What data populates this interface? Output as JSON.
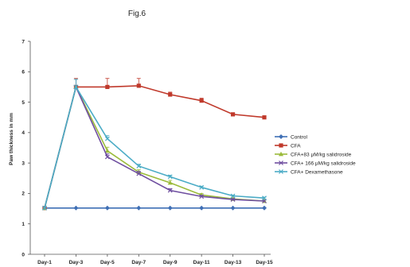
{
  "chart_data": {
    "type": "line",
    "title": "Fig.6",
    "ylabel": "Paw thickness in mm",
    "xlabel": "",
    "categories": [
      "Day-1",
      "Day-3",
      "Day-5",
      "Day-7",
      "Day-9",
      "Day-11",
      "Day-13",
      "Day-15"
    ],
    "ylim": [
      0,
      7
    ],
    "yticks": [
      0,
      1,
      2,
      3,
      4,
      5,
      6,
      7
    ],
    "grid": false,
    "legend_position": "right",
    "series": [
      {
        "name": "Control",
        "color": "#3f6fb5",
        "marker": "diamond",
        "values": [
          1.52,
          1.52,
          1.52,
          1.52,
          1.52,
          1.52,
          1.52,
          1.52
        ],
        "errors": [
          0,
          0,
          0,
          0,
          0,
          0,
          0,
          0
        ]
      },
      {
        "name": "CFA",
        "color": "#c0392b",
        "marker": "square",
        "values": [
          1.52,
          5.5,
          5.5,
          5.54,
          5.25,
          5.05,
          4.6,
          4.5
        ],
        "errors": [
          0,
          0.28,
          0.28,
          0.24,
          0.08,
          0.08,
          0,
          0
        ]
      },
      {
        "name": "CFA+83 μM/kg salidroside",
        "color": "#9bbb3b",
        "marker": "triangle",
        "values": [
          1.52,
          5.5,
          3.4,
          2.7,
          2.35,
          1.95,
          1.82,
          1.75
        ],
        "errors": [
          0,
          0.25,
          0.12,
          0.08,
          0.08,
          0.05,
          0.03,
          0.03
        ]
      },
      {
        "name": "CFA+  166 μM/kg salidroside",
        "color": "#6f4fa0",
        "marker": "x",
        "values": [
          1.52,
          5.5,
          3.2,
          2.65,
          2.1,
          1.9,
          1.8,
          1.75
        ],
        "errors": [
          0,
          0.25,
          0.1,
          0.08,
          0.06,
          0.04,
          0.03,
          0.03
        ]
      },
      {
        "name": "CFA+ Dexamethasone",
        "color": "#4bacc6",
        "marker": "x",
        "values": [
          1.52,
          5.5,
          3.8,
          2.9,
          2.55,
          2.2,
          1.92,
          1.85
        ],
        "errors": [
          0,
          0.25,
          0.1,
          0.06,
          0.05,
          0.04,
          0.03,
          0.03
        ]
      }
    ]
  }
}
